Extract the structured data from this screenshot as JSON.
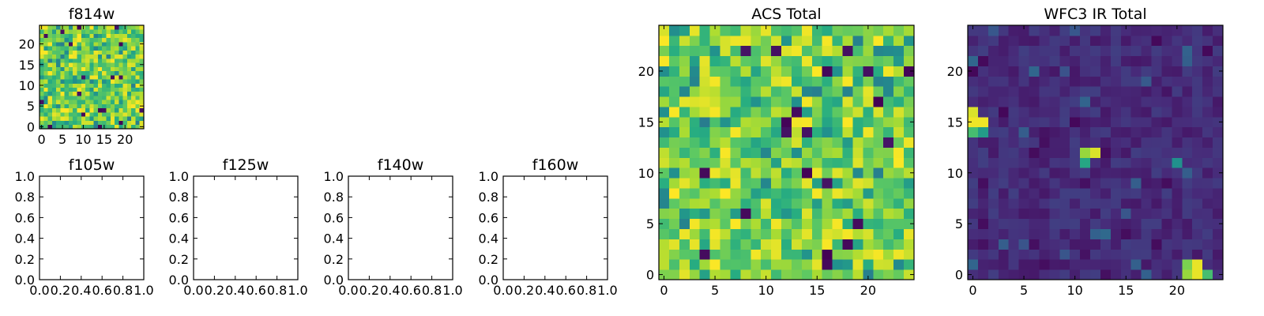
{
  "chart_data": [
    {
      "type": "heatmap",
      "title": "f814w",
      "grid_size": [
        25,
        25
      ],
      "xlim": [
        -0.5,
        24.5
      ],
      "ylim": [
        -0.5,
        24.5
      ],
      "xticks": [
        0,
        5,
        10,
        15,
        20
      ],
      "yticks": [
        0,
        5,
        10,
        15,
        20
      ],
      "colormap": "viridis",
      "value_profile": "mostly high with scattered low pixels"
    },
    {
      "type": "empty",
      "title": "f105w",
      "xlim": [
        0,
        1
      ],
      "ylim": [
        0,
        1
      ],
      "xticks": [
        "0.0",
        "0.2",
        "0.4",
        "0.6",
        "0.8",
        "1.0"
      ],
      "yticks": [
        "0.0",
        "0.2",
        "0.4",
        "0.6",
        "0.8",
        "1.0"
      ]
    },
    {
      "type": "empty",
      "title": "f125w",
      "xlim": [
        0,
        1
      ],
      "ylim": [
        0,
        1
      ],
      "xticks": [
        "0.0",
        "0.2",
        "0.4",
        "0.6",
        "0.8",
        "1.0"
      ],
      "yticks": [
        "0.0",
        "0.2",
        "0.4",
        "0.6",
        "0.8",
        "1.0"
      ]
    },
    {
      "type": "empty",
      "title": "f140w",
      "xlim": [
        0,
        1
      ],
      "ylim": [
        0,
        1
      ],
      "xticks": [
        "0.0",
        "0.2",
        "0.4",
        "0.6",
        "0.8",
        "1.0"
      ],
      "yticks": [
        "0.0",
        "0.2",
        "0.4",
        "0.6",
        "0.8",
        "1.0"
      ]
    },
    {
      "type": "empty",
      "title": "f160w",
      "xlim": [
        0,
        1
      ],
      "ylim": [
        0,
        1
      ],
      "xticks": [
        "0.0",
        "0.2",
        "0.4",
        "0.6",
        "0.8",
        "1.0"
      ],
      "yticks": [
        "0.0",
        "0.2",
        "0.4",
        "0.6",
        "0.8",
        "1.0"
      ]
    },
    {
      "type": "heatmap",
      "title": "ACS Total",
      "grid_size": [
        25,
        25
      ],
      "xlim": [
        -0.5,
        24.5
      ],
      "ylim": [
        -0.5,
        24.5
      ],
      "xticks": [
        0,
        5,
        10,
        15,
        20
      ],
      "yticks": [
        0,
        5,
        10,
        15,
        20
      ],
      "colormap": "viridis",
      "value_profile": "mostly high with scattered low pixels"
    },
    {
      "type": "heatmap",
      "title": "WFC3 IR Total",
      "grid_size": [
        25,
        25
      ],
      "xlim": [
        -0.5,
        24.5
      ],
      "ylim": [
        -0.5,
        24.5
      ],
      "xticks": [
        0,
        5,
        10,
        15,
        20
      ],
      "yticks": [
        0,
        5,
        10,
        15,
        20
      ],
      "colormap": "viridis",
      "value_profile": "mostly low background",
      "hot_pixels": [
        {
          "x": 0,
          "y": 15,
          "value": 0.98
        },
        {
          "x": 1,
          "y": 15,
          "value": 0.98
        },
        {
          "x": 0,
          "y": 16,
          "value": 0.95
        },
        {
          "x": 0,
          "y": 14,
          "value": 0.7
        },
        {
          "x": 1,
          "y": 14,
          "value": 0.55
        },
        {
          "x": 11,
          "y": 12,
          "value": 0.85
        },
        {
          "x": 12,
          "y": 12,
          "value": 0.95
        },
        {
          "x": 11,
          "y": 11,
          "value": 0.6
        },
        {
          "x": 21,
          "y": 0,
          "value": 0.85
        },
        {
          "x": 22,
          "y": 0,
          "value": 0.97
        },
        {
          "x": 21,
          "y": 1,
          "value": 0.8
        },
        {
          "x": 22,
          "y": 1,
          "value": 0.97
        },
        {
          "x": 23,
          "y": 0,
          "value": 0.7
        },
        {
          "x": 20,
          "y": 11,
          "value": 0.5
        }
      ]
    }
  ]
}
